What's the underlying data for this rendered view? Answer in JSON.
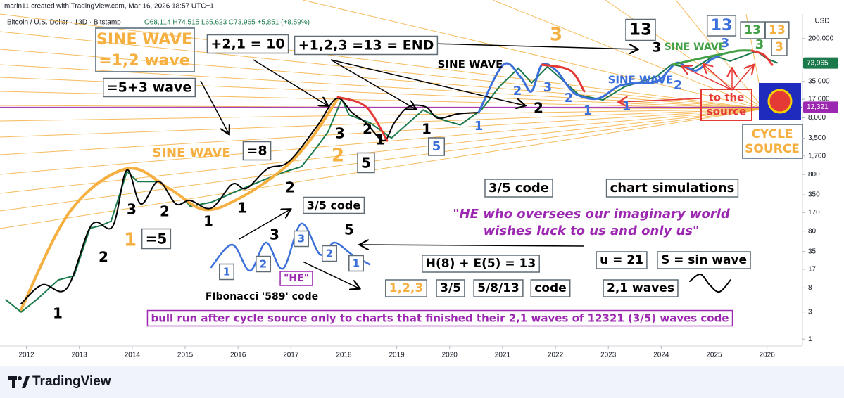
{
  "header": {
    "credit": "marin11 created with TradingView.com, Mar 16, 2026 18:57 UTC+1",
    "symbol": "Bitcoin / U.S. Dollar · 13D · Bitstamp",
    "ohlc": "O68,114  H74,515  L65,623  C73,965  +5,851 (+8.59%)",
    "currency": "USD"
  },
  "footer": {
    "brand": "TradingView"
  },
  "chart_data": {
    "type": "line",
    "log_scale": true,
    "xlim": [
      2011.5,
      2026.67
    ],
    "xticks": [
      2012,
      2013,
      2014,
      2015,
      2016,
      2017,
      2018,
      2019,
      2020,
      2021,
      2022,
      2023,
      2024,
      2025,
      2026
    ],
    "ylim": [
      0.8,
      540000
    ],
    "yticks": [
      {
        "value": 200000,
        "label": "200,000"
      },
      {
        "value": 35000,
        "label": "35,000"
      },
      {
        "value": 17000,
        "label": "17,000"
      },
      {
        "value": 8000,
        "label": "8,000"
      },
      {
        "value": 3500,
        "label": "3,500"
      },
      {
        "value": 1700,
        "label": "1,700"
      },
      800,
      350,
      170,
      80,
      35,
      17,
      8,
      3,
      1
    ],
    "series": [
      {
        "name": "Bitcoin / U.S. Dollar",
        "color": "#1b7a4c",
        "x": [
          2011.6,
          2011.9,
          2012.2,
          2012.6,
          2012.9,
          2013.2,
          2013.4,
          2013.6,
          2013.9,
          2014.1,
          2014.5,
          2014.9,
          2015.1,
          2015.5,
          2015.9,
          2016.5,
          2016.9,
          2017.2,
          2017.5,
          2017.7,
          2017.96,
          2018.1,
          2018.5,
          2018.9,
          2019.5,
          2019.9,
          2020.2,
          2020.6,
          2020.95,
          2021.3,
          2021.55,
          2021.85,
          2022.45,
          2022.9,
          2023.3,
          2023.9,
          2024.2,
          2024.6,
          2025.0,
          2025.3,
          2025.8,
          2026.0,
          2026.2
        ],
        "values": [
          5,
          3,
          5,
          11,
          13,
          90,
          100,
          120,
          900,
          600,
          600,
          350,
          220,
          260,
          380,
          650,
          900,
          1100,
          2500,
          4500,
          17000,
          9000,
          6500,
          3500,
          11000,
          7200,
          6000,
          11000,
          29000,
          60000,
          33000,
          64000,
          20000,
          16500,
          28000,
          42000,
          70000,
          58000,
          100000,
          80000,
          120000,
          88000,
          73965
        ]
      }
    ],
    "last_price": {
      "value": 73965,
      "label": "73,965",
      "color": "#1b7a4c"
    },
    "level": {
      "value": 12321,
      "label": "12,321",
      "color": "#9c27b0"
    },
    "annotations": [
      "SINE WAVE",
      "=1,2 wave",
      "=5+3 wave",
      "+2,1 = 10",
      "+1,2,3 =13 = END",
      "13",
      "3",
      "3",
      "SINE WAVE",
      "SINE WAVE",
      "SINE WAVE",
      "13",
      "13",
      "13",
      "3",
      "3",
      "3",
      "to the",
      "source",
      "CYCLE",
      "SOURCE",
      "SINE WAVE",
      "=8",
      "3/5 code",
      "3/5 code",
      "chart simulations",
      "\"HE who oversees our imaginary world",
      "wishes luck to us and only us\"",
      "u = 21",
      "S = sin wave",
      "H(8) + E(5) = 13",
      "1,2,3",
      "3/5",
      "5/8/13",
      "code",
      "2,1 waves",
      "\"HE\"",
      "FIbonacci '589' code",
      "bull run after cycle source only to charts that finished their 2,1 waves of 12321 (3/5) waves code",
      "1",
      "2",
      "1",
      "=5",
      "3",
      "2",
      "1",
      "1",
      "2",
      "3",
      "5",
      "3",
      "2",
      "1",
      "2",
      "5",
      "1",
      "5",
      "1",
      "2",
      "2",
      "3",
      "2",
      "1",
      "1",
      "2",
      "1",
      "2",
      "3",
      "2",
      "1"
    ]
  }
}
